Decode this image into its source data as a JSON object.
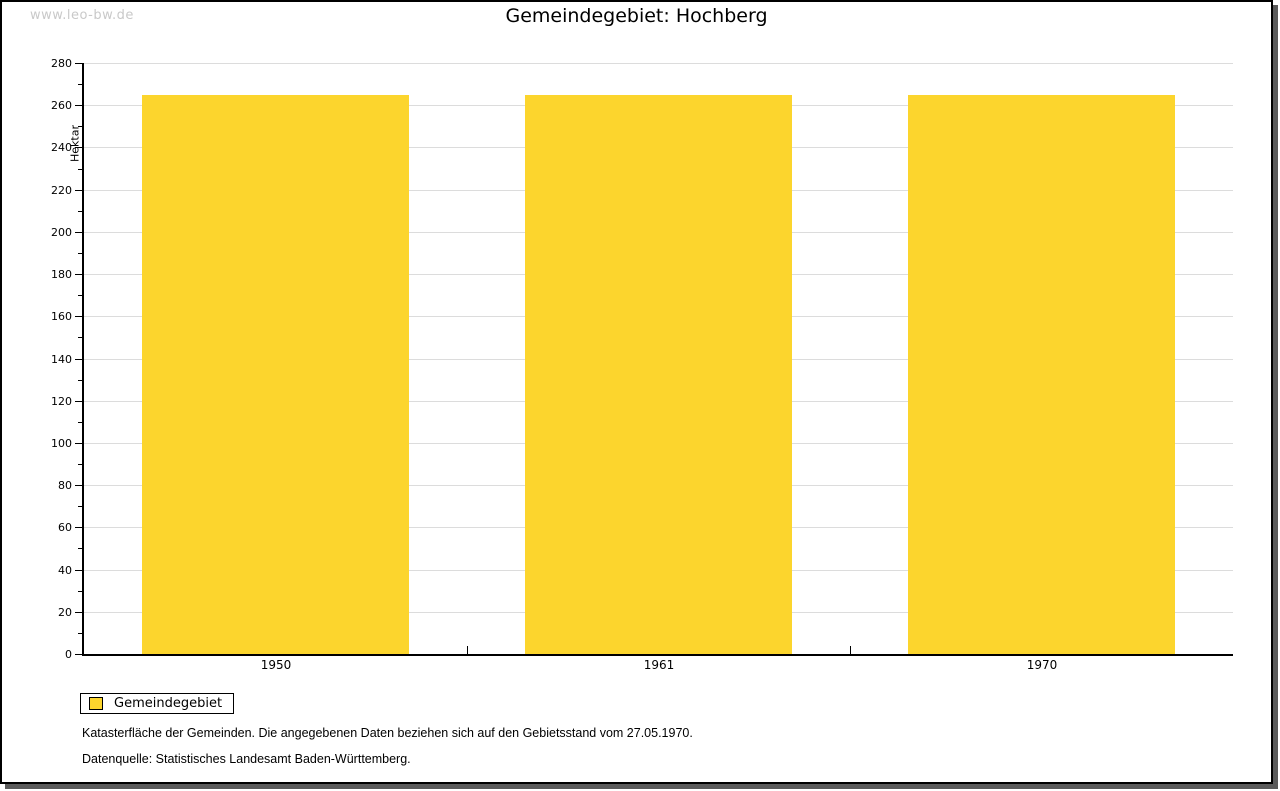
{
  "watermark": "www.leo-bw.de",
  "header": {
    "title": "Gemeindegebiet: Hochberg"
  },
  "legend": {
    "label": "Gemeindegebiet"
  },
  "footnotes": {
    "line1": "Katasterfläche der Gemeinden. Die angegebenen Daten beziehen sich auf den Gebietsstand vom 27.05.1970.",
    "line2": "Datenquelle: Statistisches Landesamt Baden-Württemberg."
  },
  "colors": {
    "bar": "#fcd52d",
    "grid": "#dcdcdc",
    "axis": "#000000",
    "text": "#000000",
    "watermark": "#c9c9c9",
    "frame_shadow": "#5a5a5a"
  },
  "chart_data": {
    "type": "bar",
    "title": "Gemeindegebiet: Hochberg",
    "categories": [
      "1950",
      "1961",
      "1970"
    ],
    "series": [
      {
        "name": "Gemeindegebiet",
        "values": [
          265,
          265,
          265
        ]
      }
    ],
    "xlabel": "",
    "ylabel": "Hektar",
    "ylim": [
      0,
      280
    ],
    "ytick_major": 20,
    "ytick_minor": 10,
    "grid": true,
    "bar_width_fraction": 0.697,
    "legend_position": "bottom-left"
  }
}
